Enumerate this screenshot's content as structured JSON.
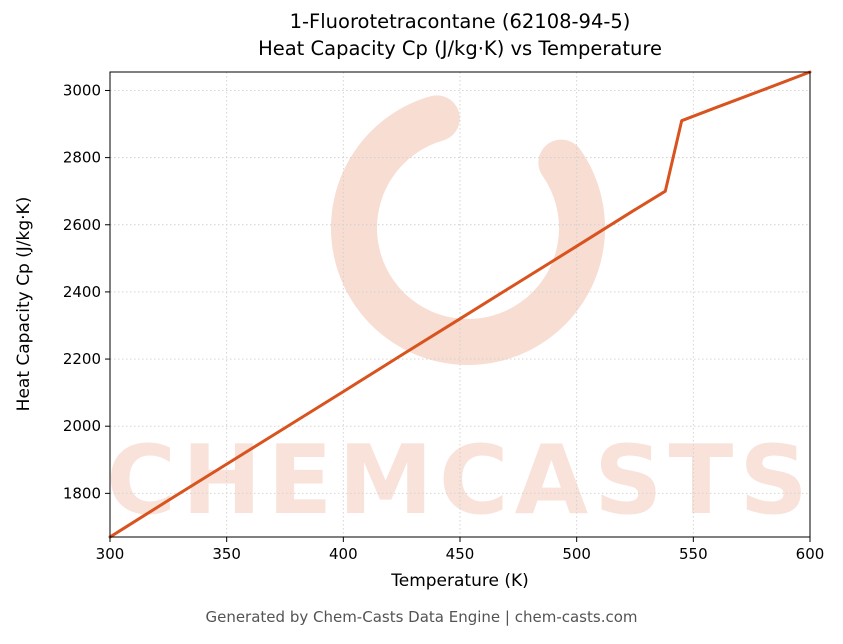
{
  "title": {
    "line1": "1-Fluorotetracontane (62108-94-5)",
    "line2": "Heat Capacity Cp (J/kg·K) vs Temperature"
  },
  "footer": {
    "text": "Generated by Chem-Casts Data Engine | chem-casts.com"
  },
  "watermark": {
    "text": "CHEMCASTS",
    "logo": "c-swirl-logo",
    "color": "#d9531f"
  },
  "chart_data": {
    "type": "line",
    "title": "1-Fluorotetracontane (62108-94-5) Heat Capacity Cp (J/kg·K) vs Temperature",
    "xlabel": "Temperature (K)",
    "ylabel": "Heat Capacity Cp (J/kg·K)",
    "xlim": [
      300,
      600
    ],
    "ylim": [
      1670,
      3055
    ],
    "x_ticks": [
      300,
      350,
      400,
      450,
      500,
      550,
      600
    ],
    "y_ticks": [
      1800,
      2000,
      2200,
      2400,
      2600,
      2800,
      3000
    ],
    "grid": true,
    "legend": false,
    "line_color": "#d9531f",
    "series": [
      {
        "name": "Heat Capacity Cp",
        "x": [
          300,
          325,
          350,
          375,
          400,
          425,
          450,
          475,
          500,
          525,
          538,
          545,
          560,
          580,
          600
        ],
        "y": [
          1670,
          1779,
          1887,
          1995,
          2103,
          2212,
          2320,
          2428,
          2536,
          2645,
          2700,
          2910,
          2950,
          3002,
          3055
        ]
      }
    ]
  }
}
